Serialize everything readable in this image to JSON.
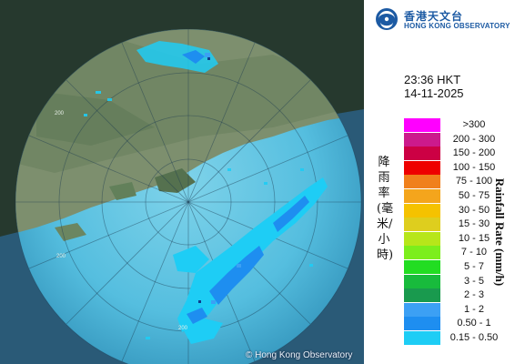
{
  "map": {
    "copyright": "© Hong Kong Observatory",
    "range_labels": [
      "200",
      "200",
      "200"
    ]
  },
  "logo": {
    "icon": "hko-logo-icon",
    "name_zh": "香港天文台",
    "name_en": "HONG KONG OBSERVATORY"
  },
  "observation": {
    "time": "23:36 HKT",
    "date": "14-11-2025"
  },
  "legend": {
    "title_zh": "降雨率(毫米/小時)",
    "title_en": "Rainfall Rate (mm/h)",
    "items": [
      {
        "label": ">300",
        "color": "#ff00ff"
      },
      {
        "label": "200 - 300",
        "color": "#cc1a8c"
      },
      {
        "label": "150 - 200",
        "color": "#cc0044"
      },
      {
        "label": "100 - 150",
        "color": "#ee0000"
      },
      {
        "label": "75 - 100",
        "color": "#f0801c"
      },
      {
        "label": "50 - 75",
        "color": "#f4a51c"
      },
      {
        "label": "30 - 50",
        "color": "#f5c200"
      },
      {
        "label": "15 - 30",
        "color": "#dece1e"
      },
      {
        "label": "10 - 15",
        "color": "#b7e61a"
      },
      {
        "label": "7 - 10",
        "color": "#7cee1c"
      },
      {
        "label": "5 - 7",
        "color": "#22dd22"
      },
      {
        "label": "3 - 5",
        "color": "#18bb3c"
      },
      {
        "label": "2 - 3",
        "color": "#199a4e"
      },
      {
        "label": "1 - 2",
        "color": "#3ca0f4"
      },
      {
        "label": "0.50 - 1",
        "color": "#1e8ef0"
      },
      {
        "label": "0.15 - 0.50",
        "color": "#1ecdf5"
      }
    ]
  }
}
